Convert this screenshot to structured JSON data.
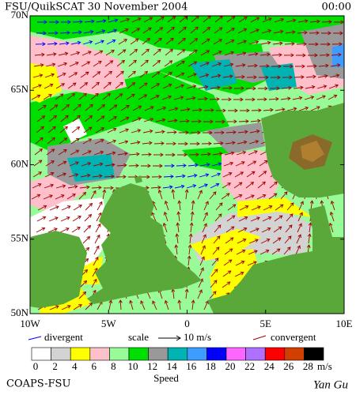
{
  "header": {
    "title": "FSU/QuikSCAT 30 November 2004",
    "time": "00:00"
  },
  "axes": {
    "lat_labels": [
      "70N",
      "65N",
      "60N",
      "55N",
      "50N"
    ],
    "lon_labels": [
      "10W",
      "5W",
      "0",
      "5E",
      "10E"
    ]
  },
  "legend": {
    "divergent": "divergent",
    "scale": "scale",
    "scale_value": "10 m/s",
    "convergent": "convergent",
    "divergent_color": "#0000ff",
    "convergent_color": "#a00000"
  },
  "colorbar": {
    "labels": [
      0,
      2,
      4,
      6,
      8,
      10,
      12,
      14,
      16,
      18,
      20,
      22,
      24,
      26,
      28
    ],
    "unit": "m/s",
    "title": "Speed",
    "colors": [
      "#ffffff",
      "#d3d3d3",
      "#ffff00",
      "#ffc0cb",
      "#98fb98",
      "#00e000",
      "#999999",
      "#00b4b4",
      "#3c9cff",
      "#0000ff",
      "#ff66ff",
      "#b070ff",
      "#ff0000",
      "#d04000",
      "#000000"
    ]
  },
  "footer": {
    "left": "COAPS-FSU",
    "right": "Yan Gu"
  }
}
